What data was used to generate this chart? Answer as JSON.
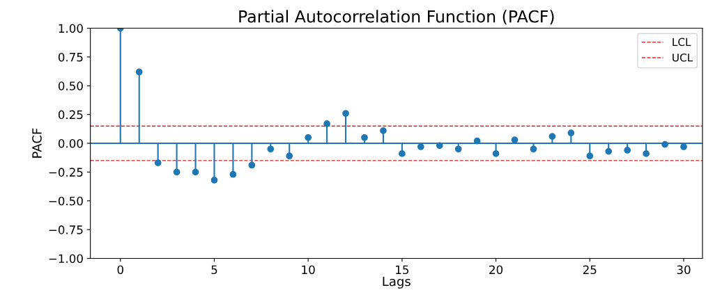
{
  "chart_data": {
    "type": "lollipop",
    "title": "Partial Autocorrelation Function (PACF)",
    "xlabel": "Lags",
    "ylabel": "PACF",
    "x": [
      0,
      1,
      2,
      3,
      4,
      5,
      6,
      7,
      8,
      9,
      10,
      11,
      12,
      13,
      14,
      15,
      16,
      17,
      18,
      19,
      20,
      21,
      22,
      23,
      24,
      25,
      26,
      27,
      28,
      29,
      30
    ],
    "series": [
      {
        "color": "#1f77b4",
        "values": [
          1.0,
          0.62,
          -0.17,
          -0.25,
          -0.25,
          -0.32,
          -0.27,
          -0.19,
          -0.05,
          -0.11,
          0.05,
          0.17,
          0.26,
          0.05,
          0.11,
          -0.09,
          -0.03,
          -0.02,
          -0.05,
          0.02,
          -0.09,
          0.03,
          -0.05,
          0.06,
          0.09,
          -0.11,
          -0.07,
          -0.06,
          -0.09,
          -0.01,
          -0.03
        ]
      }
    ],
    "marker": "circle",
    "ref_lines": [
      {
        "axis": "y",
        "value": 0.0,
        "color": "#1f77b4",
        "line_style": "solid"
      },
      {
        "axis": "y",
        "value": -0.15,
        "label": "LCL",
        "color": "#d62728",
        "line_style": "dashed"
      },
      {
        "axis": "y",
        "value": 0.15,
        "label": "UCL",
        "color": "#d62728",
        "line_style": "dashed"
      }
    ],
    "xlim": [
      -1.6,
      31.0
    ],
    "ylim": [
      -1.0,
      1.0
    ],
    "xticks": [
      0,
      5,
      10,
      15,
      20,
      25,
      30
    ],
    "yticks": [
      {
        "value": -1.0,
        "label": "−1.00"
      },
      {
        "value": -0.75,
        "label": "−0.75"
      },
      {
        "value": -0.5,
        "label": "−0.50"
      },
      {
        "value": -0.25,
        "label": "−0.25"
      },
      {
        "value": 0.0,
        "label": "0.00"
      },
      {
        "value": 0.25,
        "label": "0.25"
      },
      {
        "value": 0.5,
        "label": "0.50"
      },
      {
        "value": 0.75,
        "label": "0.75"
      },
      {
        "value": 1.0,
        "label": "1.00"
      }
    ],
    "grid": false,
    "legend": "top right"
  }
}
